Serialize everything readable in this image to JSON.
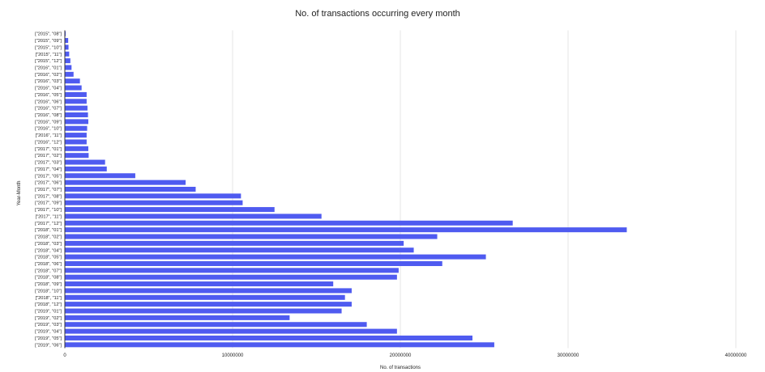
{
  "chart_data": {
    "type": "bar",
    "orientation": "horizontal",
    "title": "No. of transactions occurring every month",
    "xlabel": "No. of transactions",
    "ylabel": "Year-Month",
    "xlim": [
      0,
      40000000
    ],
    "xticks": [
      "0",
      "10000000",
      "20000000",
      "30000000",
      "40000000"
    ],
    "grid": true,
    "bar_color": "#4f5bf0",
    "categories": [
      "[\"2015\", \"08\"]",
      "[\"2015\", \"09\"]",
      "[\"2015\", \"10\"]",
      "[\"2015\", \"11\"]",
      "[\"2015\", \"12\"]",
      "[\"2016\", \"01\"]",
      "[\"2016\", \"02\"]",
      "[\"2016\", \"03\"]",
      "[\"2016\", \"04\"]",
      "[\"2016\", \"05\"]",
      "[\"2016\", \"06\"]",
      "[\"2016\", \"07\"]",
      "[\"2016\", \"08\"]",
      "[\"2016\", \"09\"]",
      "[\"2016\", \"10\"]",
      "[\"2016\", \"11\"]",
      "[\"2016\", \"12\"]",
      "[\"2017\", \"01\"]",
      "[\"2017\", \"02\"]",
      "[\"2017\", \"03\"]",
      "[\"2017\", \"04\"]",
      "[\"2017\", \"05\"]",
      "[\"2017\", \"06\"]",
      "[\"2017\", \"07\"]",
      "[\"2017\", \"08\"]",
      "[\"2017\", \"09\"]",
      "[\"2017\", \"10\"]",
      "[\"2017\", \"11\"]",
      "[\"2017\", \"12\"]",
      "[\"2018\", \"01\"]",
      "[\"2018\", \"02\"]",
      "[\"2018\", \"03\"]",
      "[\"2018\", \"04\"]",
      "[\"2018\", \"05\"]",
      "[\"2018\", \"06\"]",
      "[\"2018\", \"07\"]",
      "[\"2018\", \"08\"]",
      "[\"2018\", \"09\"]",
      "[\"2018\", \"10\"]",
      "[\"2018\", \"11\"]",
      "[\"2018\", \"12\"]",
      "[\"2019\", \"01\"]",
      "[\"2019\", \"02\"]",
      "[\"2019\", \"03\"]",
      "[\"2019\", \"04\"]",
      "[\"2019\", \"05\"]",
      "[\"2019\", \"06\"]"
    ],
    "values": [
      50000,
      200000,
      220000,
      260000,
      330000,
      400000,
      520000,
      900000,
      1000000,
      1300000,
      1300000,
      1350000,
      1380000,
      1400000,
      1330000,
      1300000,
      1300000,
      1400000,
      1420000,
      2400000,
      2500000,
      4200000,
      7200000,
      7800000,
      10500000,
      10600000,
      12500000,
      15300000,
      26700000,
      33500000,
      22200000,
      20200000,
      20800000,
      25100000,
      22500000,
      19900000,
      19800000,
      16000000,
      17100000,
      16700000,
      17100000,
      16500000,
      13400000,
      18000000,
      19800000,
      24300000,
      25600000
    ]
  }
}
